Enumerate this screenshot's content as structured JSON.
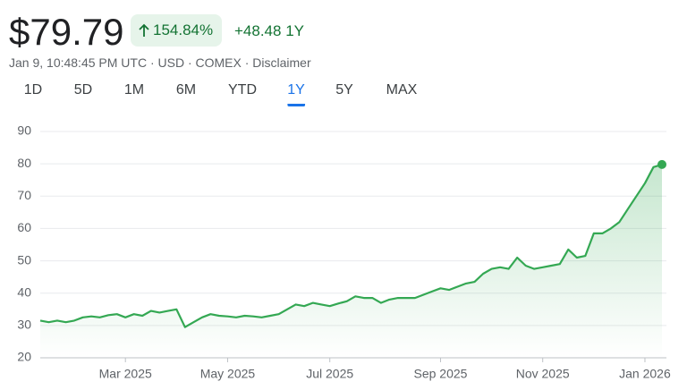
{
  "header": {
    "price": "$79.79",
    "change_percent": "154.84%",
    "change_abs": "+48.48",
    "change_period": "1Y",
    "subtitle": "Jan 9, 10:48:45 PM UTC · USD · COMEX · Disclaimer"
  },
  "tabs": [
    "1D",
    "5D",
    "1M",
    "6M",
    "YTD",
    "1Y",
    "5Y",
    "MAX"
  ],
  "selected_tab": "1Y",
  "chart_data": {
    "type": "area-line",
    "color": "#34a853",
    "categories": [
      null,
      null,
      null,
      null,
      null,
      null,
      null,
      null,
      null,
      null,
      "Mar 2025",
      null,
      null,
      null,
      null,
      null,
      null,
      null,
      null,
      null,
      null,
      null,
      "May 2025",
      null,
      null,
      null,
      null,
      null,
      null,
      null,
      null,
      null,
      null,
      null,
      "Jul 2025",
      null,
      null,
      null,
      null,
      null,
      null,
      null,
      null,
      null,
      null,
      null,
      null,
      "Sep 2025",
      null,
      null,
      null,
      null,
      null,
      null,
      null,
      null,
      null,
      null,
      null,
      "Nov 2025",
      null,
      null,
      null,
      null,
      null,
      null,
      null,
      null,
      null,
      null,
      null,
      "Jan 2026",
      null,
      null
    ],
    "values": [
      31.5,
      31,
      31.5,
      31,
      31.5,
      32.5,
      32.8,
      32.5,
      33.2,
      33.5,
      32.5,
      33.5,
      33,
      34.5,
      34,
      34.5,
      35,
      29.5,
      31,
      32.5,
      33.5,
      33,
      32.8,
      32.5,
      33,
      32.8,
      32.5,
      33,
      33.5,
      35,
      36.5,
      36,
      37,
      36.5,
      36,
      36.8,
      37.5,
      39,
      38.5,
      38.5,
      37,
      38,
      38.5,
      38.5,
      38.5,
      39.5,
      40.5,
      41.5,
      41,
      42,
      43,
      43.5,
      46,
      47.5,
      48,
      47.5,
      51,
      48.5,
      47.5,
      48,
      48.5,
      49,
      53.5,
      51,
      51.5,
      58.5,
      58.5,
      60,
      62,
      66,
      70,
      74,
      79,
      79.79
    ],
    "ylim": [
      20,
      90
    ],
    "yticks": [
      20,
      30,
      40,
      50,
      60,
      70,
      80,
      90
    ],
    "grid": true
  }
}
